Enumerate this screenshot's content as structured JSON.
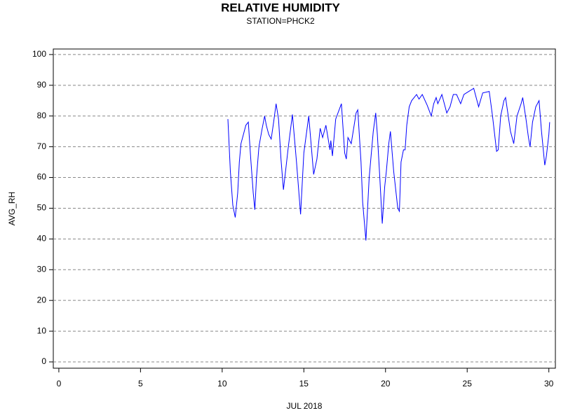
{
  "chart_data": {
    "type": "line",
    "title": "RELATIVE HUMIDITY",
    "subtitle": "STATION=PHCK2",
    "ylabel": "AVG_RH",
    "xlabel": "JUL 2018",
    "color": "#0000ff",
    "grid": true,
    "xlim": [
      -0.34,
      30.4
    ],
    "ylim": [
      -2.05,
      101.8
    ],
    "xticks": [
      0,
      5,
      10,
      15,
      20,
      25,
      30
    ],
    "yticks": [
      0,
      10,
      20,
      30,
      40,
      50,
      60,
      70,
      80,
      90,
      100
    ],
    "x": [
      10.35,
      10.5,
      10.65,
      10.8,
      10.95,
      11.05,
      11.15,
      11.3,
      11.45,
      11.6,
      11.75,
      11.9,
      12.0,
      12.1,
      12.25,
      12.45,
      12.6,
      12.7,
      12.85,
      13.0,
      13.15,
      13.3,
      13.45,
      13.6,
      13.75,
      13.9,
      14.05,
      14.3,
      14.55,
      14.8,
      15.0,
      15.3,
      15.6,
      15.8,
      16.0,
      16.15,
      16.35,
      16.6,
      16.65,
      16.75,
      16.95,
      17.3,
      17.5,
      17.6,
      17.7,
      17.9,
      18.2,
      18.3,
      18.5,
      18.6,
      18.8,
      19.0,
      19.25,
      19.4,
      19.5,
      19.65,
      19.8,
      19.95,
      20.05,
      20.2,
      20.3,
      20.5,
      20.75,
      20.85,
      20.95,
      21.1,
      21.2,
      21.3,
      21.45,
      21.6,
      21.9,
      22.05,
      22.25,
      22.55,
      22.8,
      22.95,
      23.1,
      23.2,
      23.45,
      23.75,
      23.95,
      24.15,
      24.35,
      24.6,
      24.8,
      25.1,
      25.4,
      25.7,
      25.95,
      26.35,
      26.55,
      26.8,
      26.9,
      27.05,
      27.25,
      27.35,
      27.65,
      27.85,
      28.05,
      28.3,
      28.4,
      28.6,
      28.75,
      28.85,
      29.0,
      29.2,
      29.4,
      29.55,
      29.75,
      29.85,
      30.0,
      30.05
    ],
    "values": [
      79,
      62,
      51,
      47,
      55,
      65,
      71,
      74,
      77,
      78,
      66,
      55,
      49.5,
      60,
      70,
      76,
      80,
      77,
      74,
      72.5,
      78,
      84,
      79,
      66,
      56,
      63,
      70,
      80.5,
      65,
      48,
      68,
      80,
      61,
      66,
      76,
      73,
      77,
      69,
      72,
      67,
      79,
      84,
      68,
      66,
      73,
      71,
      81,
      82,
      65,
      52,
      39.5,
      60,
      75,
      81,
      74,
      60,
      45,
      57,
      62,
      71,
      75,
      62,
      50,
      49,
      65,
      69,
      69,
      77,
      83,
      85,
      87,
      85.5,
      87,
      83.5,
      80,
      84,
      86,
      84,
      87,
      81,
      83,
      87,
      87,
      84,
      87,
      88,
      89,
      83,
      87.5,
      88,
      80,
      68.5,
      69,
      80,
      85,
      86,
      75,
      71,
      80,
      84,
      86,
      79,
      73,
      70,
      78,
      83,
      85,
      75,
      64,
      67,
      74,
      78
    ]
  }
}
